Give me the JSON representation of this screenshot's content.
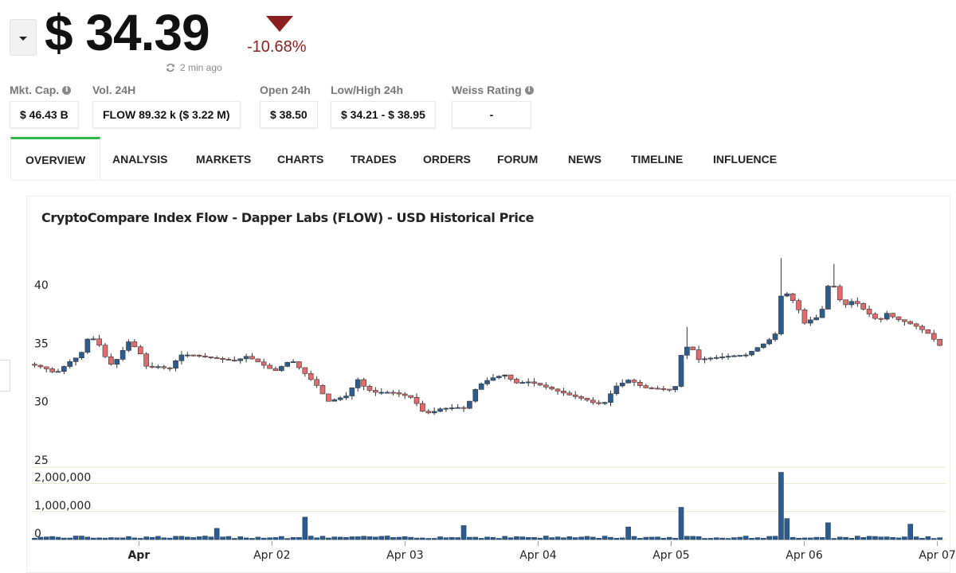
{
  "header": {
    "price": "$ 34.39",
    "change_pct": "-10.68%",
    "updated": "2 min ago",
    "change_color": "#8b1f1f"
  },
  "stats": [
    {
      "label": "Mkt. Cap.",
      "value": "$ 46.43 B",
      "info": true
    },
    {
      "label": "Vol. 24H",
      "value": "FLOW 89.32 k ($ 3.22 M)",
      "info": false
    },
    {
      "label": "Open 24h",
      "value": "$ 38.50",
      "info": false
    },
    {
      "label": "Low/High 24h",
      "value": "$ 34.21 - $ 38.95",
      "info": false
    },
    {
      "label": "Weiss Rating",
      "value": "-",
      "info": true
    }
  ],
  "tabs": [
    "OVERVIEW",
    "ANALYSIS",
    "MARKETS",
    "CHARTS",
    "TRADES",
    "ORDERS",
    "FORUM",
    "NEWS",
    "TIMELINE",
    "INFLUENCE"
  ],
  "active_tab": "OVERVIEW",
  "accent_color": "#2eb84b",
  "chart_data": {
    "type": "candlestick",
    "title": "CryptoCompare Index Flow - Dapper Labs (FLOW) - USD Historical Price",
    "price_axis": {
      "ticks": [
        25,
        30,
        35,
        40
      ],
      "range": [
        25,
        42.5
      ]
    },
    "volume_axis": {
      "tick_labels": [
        "0",
        "1,000,000",
        "2,000,000"
      ],
      "range": [
        0,
        2500000
      ]
    },
    "x_axis": {
      "tick_labels": [
        "Apr",
        "Apr 02",
        "Apr 03",
        "Apr 04",
        "Apr 05",
        "Apr 06",
        "Apr 07"
      ],
      "range_hours": [
        -19.3,
        145.5
      ]
    },
    "colors": {
      "up": "#2d5c8f",
      "down": "#e36b6b"
    },
    "price_keypoints": [
      [
        -19,
        33.2
      ],
      [
        -16.5,
        32.9
      ],
      [
        -14.5,
        32.4
      ],
      [
        -12,
        33.4
      ],
      [
        -10,
        34.0
      ],
      [
        -8.5,
        35.6
      ],
      [
        -7,
        35.2
      ],
      [
        -5.5,
        33.8
      ],
      [
        -4.5,
        33.2
      ],
      [
        -3,
        33.8
      ],
      [
        -1.5,
        35.2
      ],
      [
        0.5,
        34.4
      ],
      [
        2,
        32.9
      ],
      [
        4,
        33.0
      ],
      [
        6,
        32.8
      ],
      [
        8,
        34.0
      ],
      [
        10,
        34.0
      ],
      [
        13,
        33.8
      ],
      [
        16,
        33.6
      ],
      [
        18,
        33.5
      ],
      [
        20,
        33.9
      ],
      [
        22,
        33.4
      ],
      [
        25,
        32.6
      ],
      [
        28,
        33.6
      ],
      [
        30.5,
        32.4
      ],
      [
        33,
        31.2
      ],
      [
        34.5,
        30.0
      ],
      [
        36,
        30.2
      ],
      [
        38,
        30.5
      ],
      [
        40,
        31.9
      ],
      [
        41.5,
        31.1
      ],
      [
        43,
        30.8
      ],
      [
        46,
        30.8
      ],
      [
        48,
        30.6
      ],
      [
        50,
        30.3
      ],
      [
        51.5,
        29.2
      ],
      [
        53,
        29.0
      ],
      [
        55,
        29.4
      ],
      [
        58,
        29.5
      ],
      [
        59.5,
        29.4
      ],
      [
        61.5,
        31.3
      ],
      [
        64,
        32.0
      ],
      [
        66.5,
        32.3
      ],
      [
        68.5,
        31.6
      ],
      [
        71,
        31.7
      ],
      [
        73,
        31.4
      ],
      [
        75.5,
        31.0
      ],
      [
        78,
        30.6
      ],
      [
        81,
        30.2
      ],
      [
        83,
        29.8
      ],
      [
        84.5,
        29.9
      ],
      [
        86.5,
        31.3
      ],
      [
        89,
        31.9
      ],
      [
        91.5,
        31.2
      ],
      [
        94.5,
        31.1
      ],
      [
        96.5,
        31.0
      ],
      [
        97.5,
        31.4
      ],
      [
        98.5,
        34.5
      ],
      [
        100,
        34.8
      ],
      [
        101.5,
        33.6
      ],
      [
        103,
        33.7
      ],
      [
        107,
        33.9
      ],
      [
        110,
        34.0
      ],
      [
        112,
        34.6
      ],
      [
        114,
        35.2
      ],
      [
        115.5,
        35.9
      ],
      [
        116.5,
        39.6
      ],
      [
        118,
        39.0
      ],
      [
        119.5,
        37.9
      ],
      [
        120.5,
        36.7
      ],
      [
        122,
        37.1
      ],
      [
        123.5,
        37.3
      ],
      [
        124.5,
        39.6
      ],
      [
        125.5,
        40.5
      ],
      [
        126.5,
        38.9
      ],
      [
        128,
        38.3
      ],
      [
        129.5,
        38.7
      ],
      [
        131,
        38.0
      ],
      [
        132.5,
        37.4
      ],
      [
        134,
        36.9
      ],
      [
        135.5,
        37.6
      ],
      [
        137,
        37.1
      ],
      [
        139,
        36.8
      ],
      [
        141,
        36.4
      ],
      [
        143,
        35.8
      ],
      [
        145,
        34.8
      ],
      [
        145.4,
        34.39
      ]
    ],
    "spikes": [
      {
        "hour": 115.5,
        "high": 42.3
      },
      {
        "hour": 125.5,
        "high": 41.8
      },
      {
        "hour": 98.5,
        "high": 36.4
      }
    ],
    "volume_spikes": [
      {
        "hour": 97.5,
        "value": 1150000
      },
      {
        "hour": 115.5,
        "value": 2400000
      },
      {
        "hour": 116.5,
        "value": 750000
      },
      {
        "hour": 30,
        "value": 800000
      },
      {
        "hour": 14,
        "value": 400000
      },
      {
        "hour": 59,
        "value": 500000
      },
      {
        "hour": 124.5,
        "value": 600000
      },
      {
        "hour": 139,
        "value": 550000
      },
      {
        "hour": 88,
        "value": 450000
      }
    ]
  }
}
